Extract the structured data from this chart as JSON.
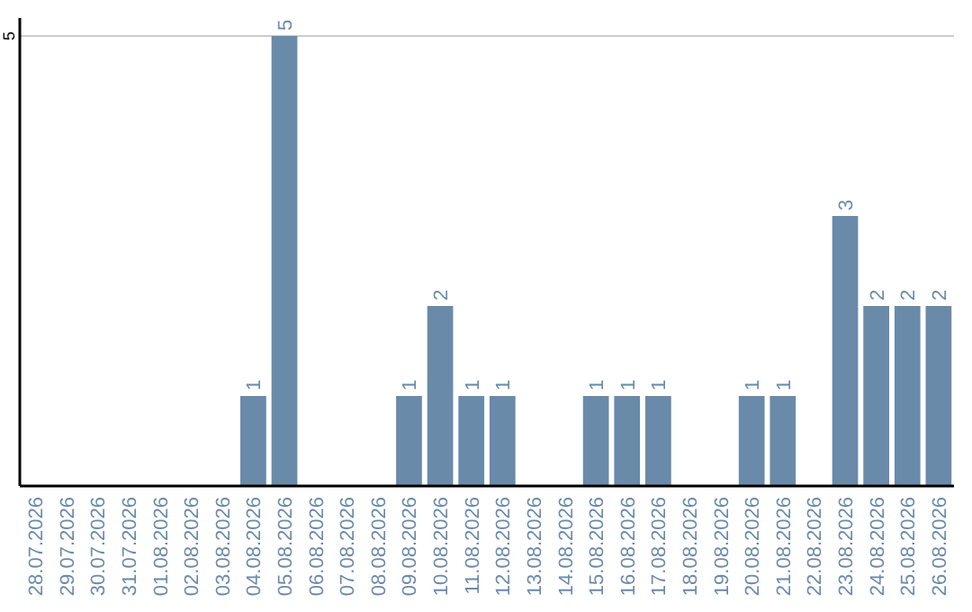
{
  "chart_data": {
    "type": "bar",
    "categories": [
      "28.07.2026",
      "29.07.2026",
      "30.07.2026",
      "31.07.2026",
      "01.08.2026",
      "02.08.2026",
      "03.08.2026",
      "04.08.2026",
      "05.08.2026",
      "06.08.2026",
      "07.08.2026",
      "08.08.2026",
      "09.08.2026",
      "10.08.2026",
      "11.08.2026",
      "12.08.2026",
      "13.08.2026",
      "14.08.2026",
      "15.08.2026",
      "16.08.2026",
      "17.08.2026",
      "18.08.2026",
      "19.08.2026",
      "20.08.2026",
      "21.08.2026",
      "22.08.2026",
      "23.08.2026",
      "24.08.2026",
      "25.08.2026",
      "26.08.2026"
    ],
    "values": [
      0,
      0,
      0,
      0,
      0,
      0,
      0,
      1,
      5,
      0,
      0,
      0,
      1,
      2,
      1,
      1,
      0,
      0,
      1,
      1,
      1,
      0,
      0,
      1,
      1,
      0,
      3,
      2,
      2,
      2
    ],
    "value_labels": [
      null,
      null,
      null,
      null,
      null,
      null,
      null,
      "1",
      "5",
      null,
      null,
      null,
      "1",
      "2",
      "1",
      "1",
      null,
      null,
      "1",
      "1",
      "1",
      null,
      null,
      "1",
      "1",
      null,
      "3",
      "2",
      "2",
      "2"
    ],
    "color": "#6a8aaa",
    "ylim": [
      0,
      5.2
    ],
    "yticks": [
      5
    ],
    "grid": "y"
  }
}
